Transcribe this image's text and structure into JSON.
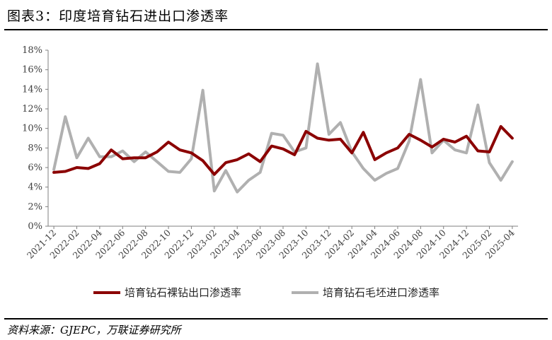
{
  "header": {
    "title": "图表3：印度培育钻石进出口渗透率"
  },
  "footer": {
    "source": "资料来源：GJEPC，万联证券研究所"
  },
  "colors": {
    "series1": "#8b0000",
    "series2": "#b0b0b0"
  },
  "chart_data": {
    "type": "line",
    "title": "",
    "xlabel": "",
    "ylabel": "",
    "ylim": [
      0,
      18
    ],
    "y_ticks": [
      "0%",
      "2%",
      "4%",
      "6%",
      "8%",
      "10%",
      "12%",
      "14%",
      "16%",
      "18%"
    ],
    "x_ticks": [
      "2021-12",
      "2022-02",
      "2022-04",
      "2022-06",
      "2022-08",
      "2022-10",
      "2022-12",
      "2023-02",
      "2023-04",
      "2023-06",
      "2023-08",
      "2023-10",
      "2023-12",
      "2024-02",
      "2024-04",
      "2024-06",
      "2024-08",
      "2024-10",
      "2024-12",
      "2025-02",
      "2025-04"
    ],
    "legend_position": "bottom",
    "grid": false,
    "x": [
      "2021-12",
      "2022-01",
      "2022-02",
      "2022-03",
      "2022-04",
      "2022-05",
      "2022-06",
      "2022-07",
      "2022-08",
      "2022-09",
      "2022-10",
      "2022-11",
      "2022-12",
      "2023-01",
      "2023-02",
      "2023-03",
      "2023-04",
      "2023-05",
      "2023-06",
      "2023-07",
      "2023-08",
      "2023-09",
      "2023-10",
      "2023-11",
      "2023-12",
      "2024-01",
      "2024-02",
      "2024-03",
      "2024-04",
      "2024-05",
      "2024-06",
      "2024-07",
      "2024-08",
      "2024-09",
      "2024-10",
      "2024-11",
      "2024-12",
      "2025-01",
      "2025-02",
      "2025-03",
      "2025-04"
    ],
    "series": [
      {
        "name": "培育钻石裸钻出口渗透率",
        "values": [
          5.5,
          5.6,
          6.0,
          5.9,
          6.4,
          7.8,
          6.9,
          7.0,
          7.0,
          7.6,
          8.6,
          7.8,
          7.5,
          6.7,
          5.3,
          6.5,
          6.8,
          7.4,
          6.6,
          8.2,
          7.9,
          7.3,
          9.7,
          9.0,
          8.8,
          8.9,
          7.5,
          9.6,
          6.8,
          7.5,
          8.0,
          9.4,
          8.8,
          8.1,
          8.9,
          8.6,
          9.2,
          7.7,
          7.6,
          10.2,
          9.0
        ]
      },
      {
        "name": "培育钻石毛坯进口渗透率",
        "values": [
          5.8,
          11.2,
          7.0,
          9.0,
          7.1,
          7.1,
          7.7,
          6.6,
          7.6,
          6.6,
          5.6,
          5.5,
          6.9,
          13.9,
          3.6,
          5.7,
          3.5,
          4.7,
          5.5,
          9.5,
          9.3,
          7.6,
          8.0,
          16.6,
          9.4,
          10.6,
          7.6,
          5.9,
          4.7,
          5.4,
          5.9,
          8.7,
          15.0,
          7.5,
          8.8,
          7.8,
          7.5,
          12.4,
          6.5,
          4.7,
          6.6
        ]
      }
    ]
  }
}
